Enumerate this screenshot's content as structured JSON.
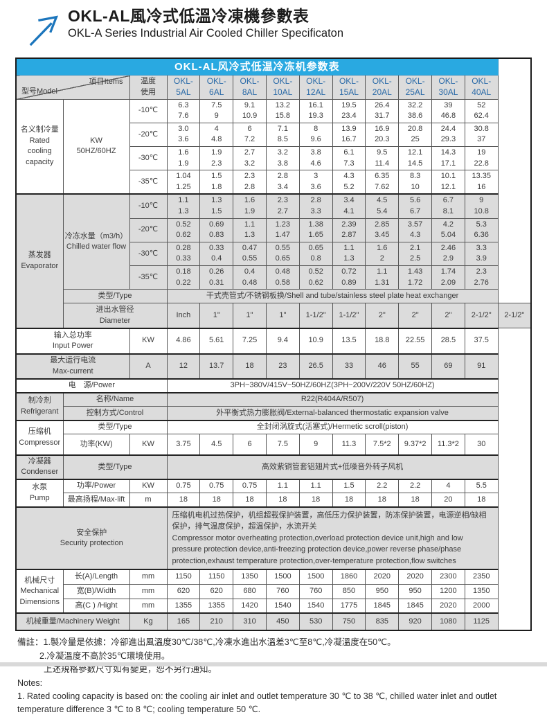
{
  "colors": {
    "accent_blue": "#29a9e1",
    "model_blue": "#2b6ba8",
    "row_gray": "#dcdcdc",
    "arrow_blue": "#1b75bc"
  },
  "header": {
    "title_zh": "OKL-AL風冷式低溫冷凍機參數表",
    "title_en": "OKL-A Series Industrial Air Cooled Chiller Specificaton"
  },
  "table": {
    "band_title": "OKL-AL风冷式低温冷冻机参数表",
    "corner_model": "型号Model",
    "corner_items": "项目Items",
    "temp1": "温度",
    "temp2": "使用",
    "models": [
      {
        "l1": "OKL-",
        "l2": "5AL"
      },
      {
        "l1": "OKL-",
        "l2": "6AL"
      },
      {
        "l1": "OKL-",
        "l2": "8AL"
      },
      {
        "l1": "OKL-",
        "l2": "10AL"
      },
      {
        "l1": "OKL-",
        "l2": "12AL"
      },
      {
        "l1": "OKL-",
        "l2": "15AL"
      },
      {
        "l1": "OKL-",
        "l2": "20AL"
      },
      {
        "l1": "OKL-",
        "l2": "25AL"
      },
      {
        "l1": "OKL-",
        "l2": "30AL"
      },
      {
        "l1": "OKL-",
        "l2": "40AL"
      }
    ]
  },
  "rated": {
    "zh": "名义制冷量",
    "en": "Rated cooling capacity",
    "unit1": "KW",
    "unit2": "50HZ/60HZ",
    "rows": [
      {
        "temp": "-10℃",
        "hz50": [
          "6.3",
          "7.5",
          "9.1",
          "13.2",
          "16.1",
          "19.5",
          "26.4",
          "32.2",
          "39",
          "52"
        ],
        "hz60": [
          "7.6",
          "9",
          "10.9",
          "15.8",
          "19.3",
          "23.4",
          "31.7",
          "38.6",
          "46.8",
          "62.4"
        ]
      },
      {
        "temp": "-20℃",
        "hz50": [
          "3.0",
          "4",
          "6",
          "7.1",
          "8",
          "13.9",
          "16.9",
          "20.8",
          "24.4",
          "30.8"
        ],
        "hz60": [
          "3.6",
          "4.8",
          "7.2",
          "8.5",
          "9.6",
          "16.7",
          "20.3",
          "25",
          "29.3",
          "37"
        ]
      },
      {
        "temp": "-30℃",
        "hz50": [
          "1.6",
          "1.9",
          "2.7",
          "3.2",
          "3.8",
          "6.1",
          "9.5",
          "12.1",
          "14.3",
          "19"
        ],
        "hz60": [
          "1.9",
          "2.3",
          "3.2",
          "3.8",
          "4.6",
          "7.3",
          "11.4",
          "14.5",
          "17.1",
          "22.8"
        ]
      },
      {
        "temp": "-35℃",
        "hz50": [
          "1.04",
          "1.5",
          "2.3",
          "2.8",
          "3",
          "4.3",
          "6.35",
          "8.3",
          "10.1",
          "13.35"
        ],
        "hz60": [
          "1.25",
          "1.8",
          "2.8",
          "3.4",
          "3.6",
          "5.2",
          "7.62",
          "10",
          "12.1",
          "16"
        ]
      }
    ]
  },
  "evaporator": {
    "zh": "蒸发器",
    "en": "Evaporator",
    "flow_zh": "冷冻水量（m3/h）",
    "flow_en": "Chilled water flow",
    "rows": [
      {
        "temp": "-10℃",
        "hz50": [
          "1.1",
          "1.3",
          "1.6",
          "2.3",
          "2.8",
          "3.4",
          "4.5",
          "5.6",
          "6.7",
          "9"
        ],
        "hz60": [
          "1.3",
          "1.5",
          "1.9",
          "2.7",
          "3.3",
          "4.1",
          "5.4",
          "6.7",
          "8.1",
          "10.8"
        ]
      },
      {
        "temp": "-20℃",
        "hz50": [
          "0.52",
          "0.69",
          "1.1",
          "1.23",
          "1.38",
          "2.39",
          "2.85",
          "3.57",
          "4.2",
          "5.3"
        ],
        "hz60": [
          "0.62",
          "0.83",
          "1.3",
          "1.47",
          "1.65",
          "2.87",
          "3.45",
          "4.3",
          "5.04",
          "6.36"
        ]
      },
      {
        "temp": "-30℃",
        "hz50": [
          "0.28",
          "0.33",
          "0.47",
          "0.55",
          "0.65",
          "1.1",
          "1.6",
          "2.1",
          "2.46",
          "3.3"
        ],
        "hz60": [
          "0.33",
          "0.4",
          "0.55",
          "0.65",
          "0.8",
          "1.3",
          "2",
          "2.5",
          "2.9",
          "3.9"
        ]
      },
      {
        "temp": "-35℃",
        "hz50": [
          "0.18",
          "0.26",
          "0.4",
          "0.48",
          "0.52",
          "0.72",
          "1.1",
          "1.43",
          "1.74",
          "2.3"
        ],
        "hz60": [
          "0.22",
          "0.31",
          "0.48",
          "0.58",
          "0.62",
          "0.89",
          "1.31",
          "1.72",
          "2.09",
          "2.76"
        ]
      }
    ],
    "type_label": "类型/Type",
    "type_value": "干式壳管式/不锈钢板换/Shell and tube/stainless steel plate heat exchanger",
    "dia_zh": "进出水管径",
    "dia_en": "Diameter",
    "dia_unit": "Inch",
    "dia_values": [
      "1\"",
      "1\"",
      "1\"",
      "1-1/2\"",
      "1-1/2\"",
      "2\"",
      "2\"",
      "2\"",
      "2-1/2\"",
      "2-1/2\""
    ]
  },
  "input_power": {
    "zh": "输入总功率",
    "en": "Input Power",
    "unit": "KW",
    "values": [
      "4.86",
      "5.61",
      "7.25",
      "9.4",
      "10.9",
      "13.5",
      "18.8",
      "22.55",
      "28.5",
      "37.5"
    ]
  },
  "max_current": {
    "zh": "最大运行电流",
    "en": "Max-current",
    "unit": "A",
    "values": [
      "12",
      "13.7",
      "18",
      "23",
      "26.5",
      "33",
      "46",
      "55",
      "69",
      "91"
    ]
  },
  "power_supply": {
    "label": "电　源/Power",
    "value": "3PH~380V/415V~50HZ/60HZ(3PH~200V/220V 50HZ/60HZ)"
  },
  "refrigerant": {
    "zh": "制冷剂",
    "en": "Refrigerant",
    "name_label": "名称/Name",
    "name_value": "R22(R404A/R507)",
    "control_label": "控制方式/Control",
    "control_value": "外平衡式热力膨胀阀/External-balanced thermostatic expansion valve"
  },
  "compressor": {
    "zh": "压缩机",
    "en": "Compressor",
    "type_label": "类型/Type",
    "type_value": "全封闭涡旋式(活塞式)/Hermetic scroll(piston)",
    "power_label": "功率(KW)",
    "power_unit": "KW",
    "power_values": [
      "3.75",
      "4.5",
      "6",
      "7.5",
      "9",
      "11.3",
      "7.5*2",
      "9.37*2",
      "11.3*2",
      "30"
    ]
  },
  "condenser": {
    "zh": "冷凝器",
    "en": "Condenser",
    "type_label": "类型/Type",
    "type_value": "高效紫铜管套铝翅片式+低噪音外转子风机"
  },
  "pump": {
    "zh": "水泵",
    "en": "Pump",
    "power_label": "功率/Power",
    "power_unit": "KW",
    "power_values": [
      "0.75",
      "0.75",
      "0.75",
      "1.1",
      "1.1",
      "1.5",
      "2.2",
      "2.2",
      "4",
      "5.5"
    ],
    "lift_label": "最高扬程/Max-lift",
    "lift_unit": "m",
    "lift_values": [
      "18",
      "18",
      "18",
      "18",
      "18",
      "18",
      "18",
      "18",
      "20",
      "18"
    ]
  },
  "security": {
    "zh": "安全保护",
    "en": "Security protection",
    "text_zh": "压缩机电机过热保护，机组超载保护装置，高低压力保护装置，防冻保护装置，电源逆相/缺相保护，排气温度保护，超温保护，水流开关",
    "text_en": "Compressor motor overheating protection,overload protection device unit,high and low pressure protection device,anti-freezing protection device,power reverse phase/phase protection,exhaust temperature protection,over-temperature protection,flow switches"
  },
  "dimensions": {
    "zh": "机械尺寸",
    "en": "Mechanical Dimensions",
    "rows": [
      {
        "label": "长(A)/Length",
        "unit": "mm",
        "values": [
          "1150",
          "1150",
          "1350",
          "1500",
          "1500",
          "1860",
          "2020",
          "2020",
          "2300",
          "2350"
        ]
      },
      {
        "label": "宽(B)/Width",
        "unit": "mm",
        "values": [
          "620",
          "620",
          "680",
          "760",
          "760",
          "850",
          "950",
          "950",
          "1200",
          "1350"
        ]
      },
      {
        "label": "高(C ) /Hight",
        "unit": "mm",
        "values": [
          "1355",
          "1355",
          "1420",
          "1540",
          "1540",
          "1775",
          "1845",
          "1845",
          "2020",
          "2000"
        ]
      }
    ]
  },
  "weight": {
    "label": "机械重量/Machinery Weight",
    "unit": "Kg",
    "values": [
      "165",
      "210",
      "310",
      "450",
      "530",
      "750",
      "835",
      "920",
      "1080",
      "1125"
    ]
  },
  "notes": {
    "zh1": "備註：1.製冷量是依據：冷卻進出風溫度30℃/38℃,冷凍水進出水溫差3℃至8℃,冷凝溫度在50℃。",
    "zh2": "2.冷凝溫度不高於35℃環境使用。",
    "zh3": "上述規格參數尺寸如有變更，恕不另行通知。",
    "en_label": "Notes:",
    "en1": "1. Rated cooling capacity is based on: the cooling air inlet and outlet temperature 30 ℃ to 38 ℃, chilled water inlet and outlet temperature difference 3 ℃ to 8 ℃; cooling temperature 50 ℃."
  }
}
